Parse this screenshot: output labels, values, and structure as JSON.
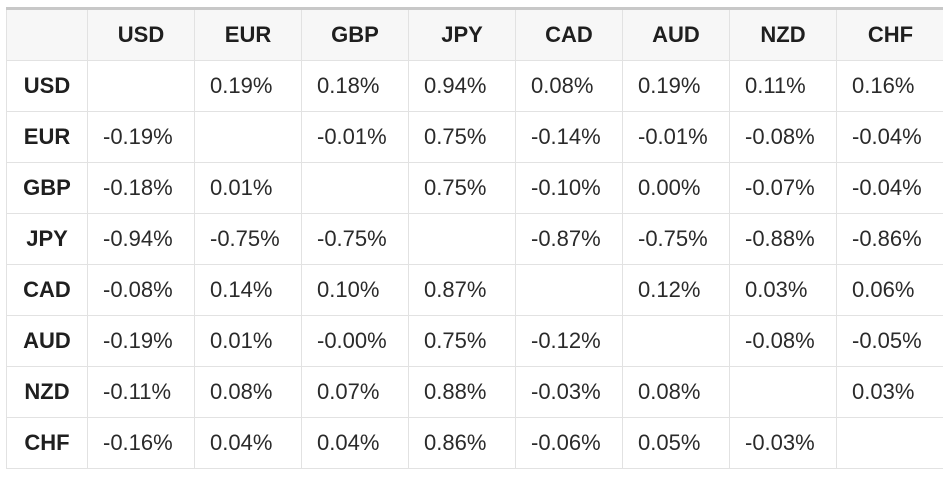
{
  "currencies": [
    "USD",
    "EUR",
    "GBP",
    "JPY",
    "CAD",
    "AUD",
    "NZD",
    "CHF"
  ],
  "matrix": [
    [
      "",
      "0.19%",
      "0.18%",
      "0.94%",
      "0.08%",
      "0.19%",
      "0.11%",
      "0.16%"
    ],
    [
      "-0.19%",
      "",
      "-0.01%",
      "0.75%",
      "-0.14%",
      "-0.01%",
      "-0.08%",
      "-0.04%"
    ],
    [
      "-0.18%",
      "0.01%",
      "",
      "0.75%",
      "-0.10%",
      "0.00%",
      "-0.07%",
      "-0.04%"
    ],
    [
      "-0.94%",
      "-0.75%",
      "-0.75%",
      "",
      "-0.87%",
      "-0.75%",
      "-0.88%",
      "-0.86%"
    ],
    [
      "-0.08%",
      "0.14%",
      "0.10%",
      "0.87%",
      "",
      "0.12%",
      "0.03%",
      "0.06%"
    ],
    [
      "-0.19%",
      "0.01%",
      "-0.00%",
      "0.75%",
      "-0.12%",
      "",
      "-0.08%",
      "-0.05%"
    ],
    [
      "-0.11%",
      "0.08%",
      "0.07%",
      "0.88%",
      "-0.03%",
      "0.08%",
      "",
      "0.03%"
    ],
    [
      "-0.16%",
      "0.04%",
      "0.04%",
      "0.86%",
      "-0.06%",
      "0.05%",
      "-0.03%",
      ""
    ]
  ],
  "colors": {
    "border": "#e2e2e2",
    "header_background": "#f7f7f7",
    "top_rule": "#c8c8c8"
  }
}
